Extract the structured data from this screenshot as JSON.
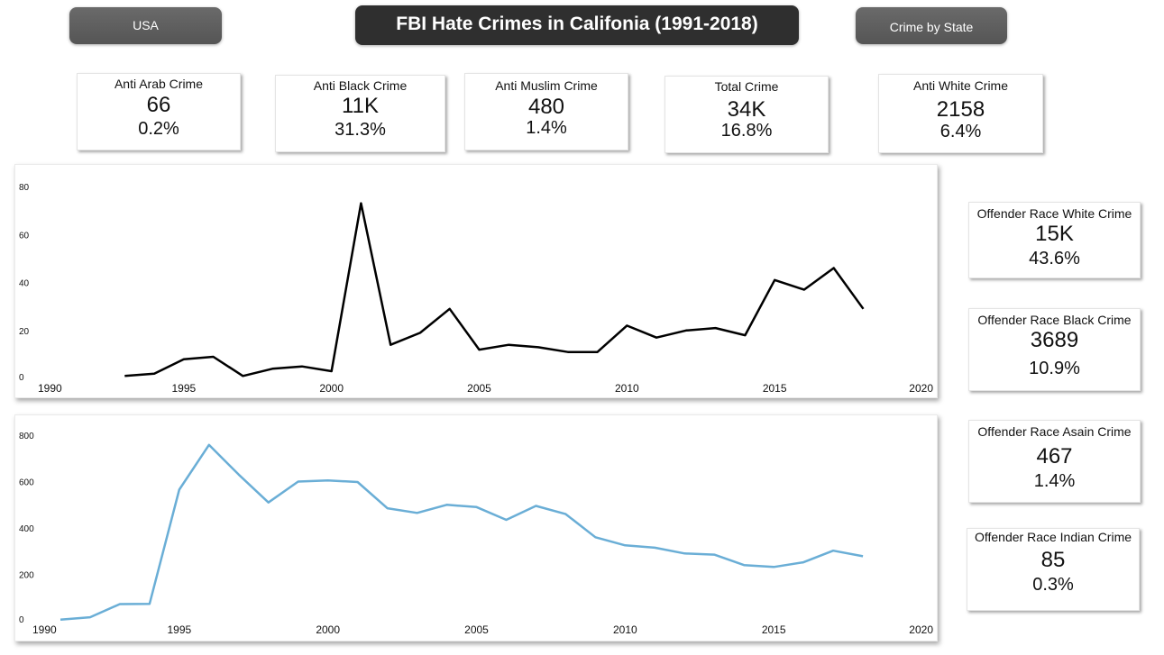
{
  "header": {
    "usa_label": "USA",
    "title": "FBI Hate Crimes in Califonia (1991-2018)",
    "state_label": "Crime by State"
  },
  "kpis": [
    {
      "label": "Anti Arab Crime",
      "value": "66",
      "pct": "0.2%"
    },
    {
      "label": "Anti Black Crime",
      "value": "11K",
      "pct": "31.3%"
    },
    {
      "label": "Anti Muslim Crime",
      "value": "480",
      "pct": "1.4%"
    },
    {
      "label": "Total Crime",
      "value": "34K",
      "pct": "16.8%"
    },
    {
      "label": "Anti White Crime",
      "value": "2158",
      "pct": "6.4%"
    }
  ],
  "side_kpis": [
    {
      "label": "Offender Race White Crime",
      "value": "15K",
      "pct": "43.6%"
    },
    {
      "label": "Offender Race Black Crime",
      "value": "3689",
      "pct": "10.9%"
    },
    {
      "label": "Offender Race Asain Crime",
      "value": "467",
      "pct": "1.4%"
    },
    {
      "label": "Offender Race Indian Crime",
      "value": "85",
      "pct": "0.3%"
    }
  ],
  "chart_data": [
    {
      "type": "line",
      "color": "#000000",
      "xlim": [
        1990,
        2020
      ],
      "ylim": [
        0,
        80
      ],
      "xticks": [
        1990,
        1995,
        2000,
        2005,
        2010,
        2015,
        2020
      ],
      "yticks": [
        0,
        20,
        40,
        60,
        80
      ],
      "x": [
        1993,
        1994,
        1995,
        1996,
        1997,
        1998,
        1999,
        2000,
        2001,
        2002,
        2003,
        2004,
        2005,
        2006,
        2007,
        2008,
        2009,
        2010,
        2011,
        2012,
        2013,
        2014,
        2015,
        2016,
        2017,
        2018
      ],
      "y": [
        1,
        2,
        8,
        9,
        1,
        4,
        5,
        3,
        73,
        14,
        19,
        29,
        12,
        14,
        13,
        11,
        11,
        22,
        17,
        20,
        21,
        18,
        41,
        37,
        46,
        29
      ]
    },
    {
      "type": "line",
      "color": "#6aaed6",
      "xlim": [
        1990,
        2020
      ],
      "ylim": [
        0,
        800
      ],
      "xticks": [
        1990,
        1995,
        2000,
        2005,
        2010,
        2015,
        2020
      ],
      "yticks": [
        0,
        200,
        400,
        600,
        800
      ],
      "x": [
        1991,
        1992,
        1993,
        1994,
        1995,
        1996,
        1997,
        1998,
        1999,
        2000,
        2001,
        2002,
        2003,
        2004,
        2005,
        2006,
        2007,
        2008,
        2009,
        2010,
        2011,
        2012,
        2013,
        2014,
        2015,
        2016,
        2017,
        2018
      ],
      "y": [
        5,
        15,
        72,
        73,
        565,
        758,
        630,
        510,
        600,
        605,
        598,
        485,
        465,
        500,
        490,
        435,
        495,
        460,
        360,
        325,
        315,
        290,
        285,
        240,
        232,
        252,
        302,
        278
      ]
    }
  ]
}
